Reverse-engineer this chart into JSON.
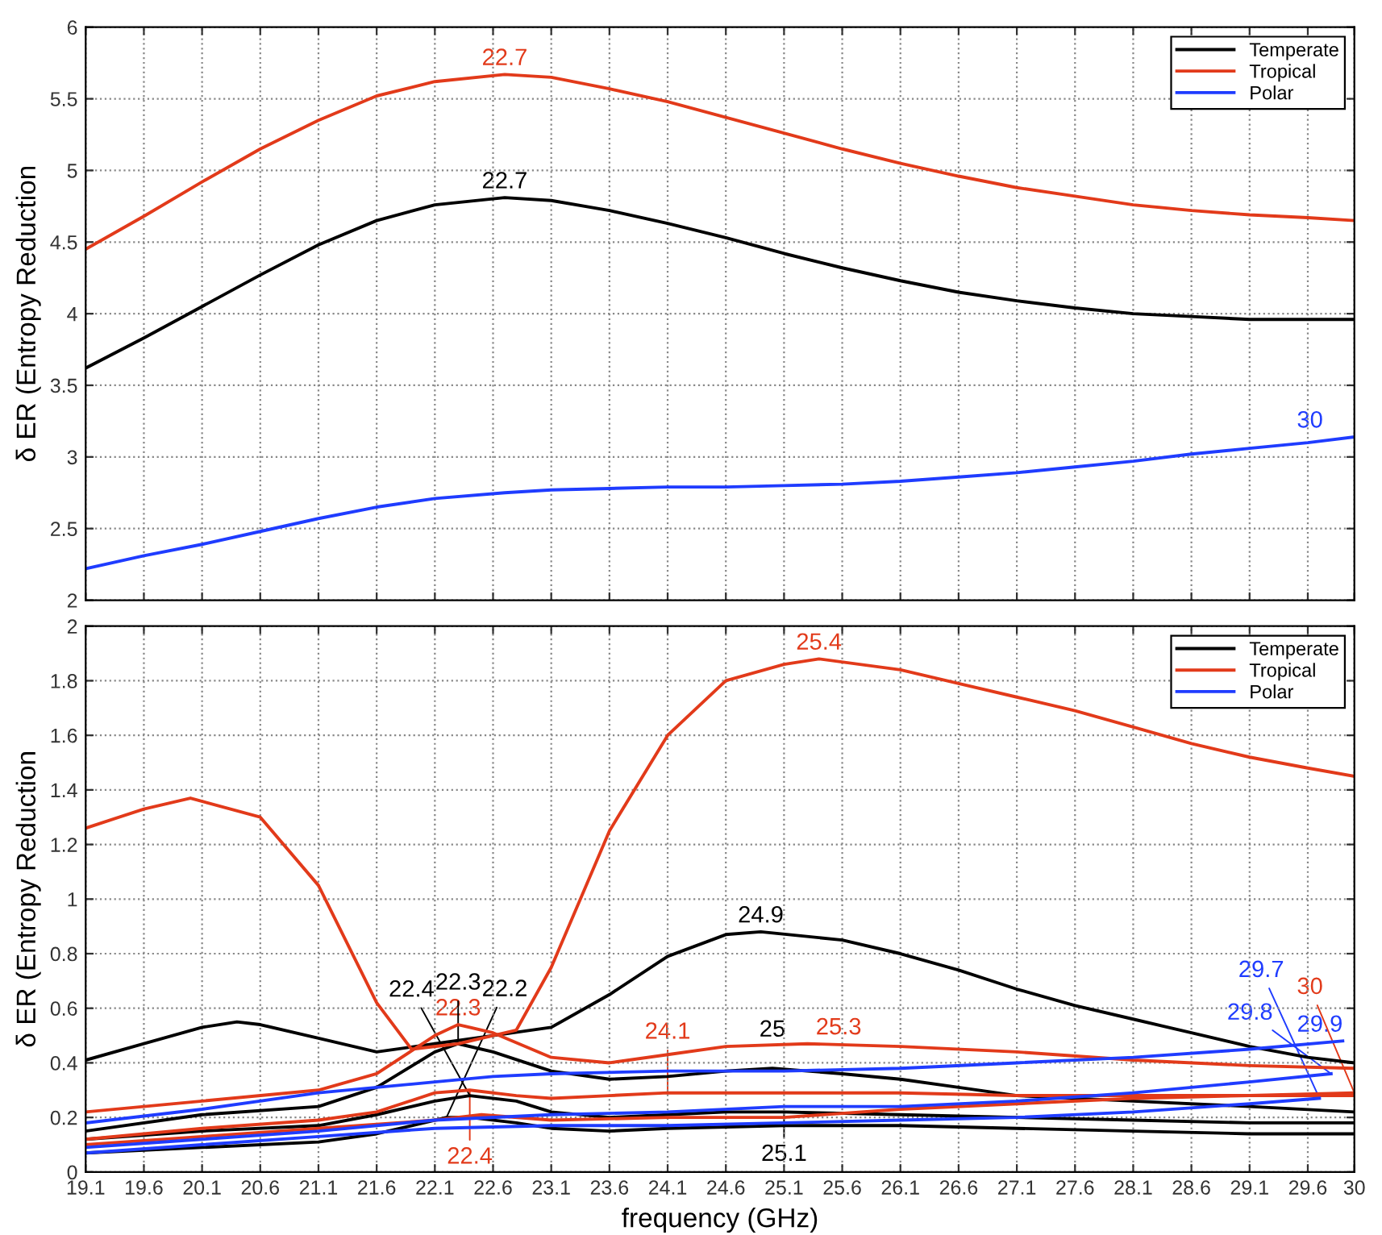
{
  "chart_data": [
    {
      "type": "line",
      "ylabel": "δ ER (Entropy Reduction",
      "xlim": [
        19.1,
        30
      ],
      "ylim": [
        2,
        6
      ],
      "xticks": [
        19.1,
        19.6,
        20.1,
        20.6,
        21.1,
        21.6,
        22.1,
        22.6,
        23.1,
        23.6,
        24.1,
        24.6,
        25.1,
        25.6,
        26.1,
        26.6,
        27.1,
        27.6,
        28.1,
        28.6,
        29.1,
        29.6,
        30
      ],
      "yticks": [
        2,
        2.5,
        3,
        3.5,
        4,
        4.5,
        5,
        5.5,
        6
      ],
      "tick_labels": "y",
      "grid": true,
      "legend": "top right",
      "x": [
        19.1,
        19.6,
        20.1,
        20.6,
        21.1,
        21.6,
        22.1,
        22.7,
        23.1,
        23.6,
        24.1,
        24.6,
        25.1,
        25.6,
        26.1,
        26.6,
        27.1,
        27.6,
        28.1,
        28.6,
        29.1,
        29.6,
        30
      ],
      "series": [
        {
          "name": "Temperate",
          "color": "#000000",
          "values": [
            3.62,
            3.83,
            4.05,
            4.27,
            4.48,
            4.65,
            4.76,
            4.81,
            4.79,
            4.72,
            4.63,
            4.53,
            4.42,
            4.32,
            4.23,
            4.15,
            4.09,
            4.04,
            4.0,
            3.98,
            3.96,
            3.96,
            3.96
          ]
        },
        {
          "name": "Tropical",
          "color": "#e23a1a",
          "values": [
            4.45,
            4.68,
            4.92,
            5.15,
            5.35,
            5.52,
            5.62,
            5.67,
            5.65,
            5.57,
            5.48,
            5.37,
            5.26,
            5.15,
            5.05,
            4.96,
            4.88,
            4.82,
            4.76,
            4.72,
            4.69,
            4.67,
            4.65
          ]
        },
        {
          "name": "Polar",
          "color": "#1f3cff",
          "values": [
            2.22,
            2.31,
            2.39,
            2.48,
            2.57,
            2.65,
            2.71,
            2.75,
            2.77,
            2.78,
            2.79,
            2.79,
            2.8,
            2.81,
            2.83,
            2.86,
            2.89,
            2.93,
            2.97,
            3.02,
            3.06,
            3.1,
            3.14
          ]
        }
      ],
      "annotations": [
        {
          "text": "22.7",
          "x": 22.7,
          "y": 5.67
        },
        {
          "text": "22.7",
          "x": 22.7,
          "y": 4.81
        },
        {
          "text": "30",
          "x": 30,
          "y": 3.14
        }
      ]
    },
    {
      "type": "line",
      "xlabel": "frequency (GHz)",
      "ylabel": "δ ER (Entropy Reduction",
      "xlim": [
        19.1,
        30
      ],
      "ylim": [
        0,
        2
      ],
      "xticks": [
        19.1,
        19.6,
        20.1,
        20.6,
        21.1,
        21.6,
        22.1,
        22.6,
        23.1,
        23.6,
        24.1,
        24.6,
        25.1,
        25.6,
        26.1,
        26.6,
        27.1,
        27.6,
        28.1,
        28.6,
        29.1,
        29.6,
        30
      ],
      "yticks": [
        0,
        0.2,
        0.4,
        0.6,
        0.8,
        1,
        1.2,
        1.4,
        1.6,
        1.8,
        2
      ],
      "grid": true,
      "legend": "top right",
      "series": [
        {
          "name": "Temperate",
          "color": "#000000",
          "x": [
            19.1,
            19.6,
            20.1,
            20.4,
            20.6,
            21.1,
            21.6,
            22.1,
            22.6,
            23.1,
            23.6,
            24.1,
            24.6,
            24.9,
            25.6,
            26.1,
            26.6,
            27.1,
            27.6,
            28.1,
            28.6,
            29.1,
            29.6,
            30
          ],
          "values": [
            0.41,
            0.47,
            0.53,
            0.55,
            0.54,
            0.49,
            0.44,
            0.47,
            0.5,
            0.53,
            0.65,
            0.79,
            0.87,
            0.88,
            0.85,
            0.8,
            0.74,
            0.67,
            0.61,
            0.56,
            0.51,
            0.46,
            0.42,
            0.4
          ]
        },
        {
          "color": "#000000",
          "x": [
            19.1,
            20.1,
            21.1,
            21.6,
            22.1,
            22.3,
            22.6,
            23.1,
            23.6,
            24.1,
            24.6,
            25,
            25.6,
            26.1,
            26.6,
            27.1,
            28.1,
            29.1,
            30
          ],
          "values": [
            0.15,
            0.21,
            0.24,
            0.31,
            0.44,
            0.47,
            0.44,
            0.37,
            0.34,
            0.35,
            0.37,
            0.38,
            0.36,
            0.34,
            0.31,
            0.28,
            0.26,
            0.24,
            0.22
          ]
        },
        {
          "color": "#000000",
          "x": [
            19.1,
            20.1,
            21.1,
            21.6,
            22.1,
            22.4,
            22.8,
            23.1,
            23.6,
            24.1,
            24.6,
            25.1,
            26.1,
            27.1,
            28.1,
            29.1,
            30
          ],
          "values": [
            0.12,
            0.15,
            0.17,
            0.21,
            0.26,
            0.28,
            0.26,
            0.22,
            0.2,
            0.21,
            0.22,
            0.22,
            0.21,
            0.2,
            0.19,
            0.18,
            0.18
          ]
        },
        {
          "color": "#000000",
          "x": [
            19.1,
            20.1,
            21.1,
            21.6,
            22.1,
            22.2,
            22.4,
            22.8,
            23.1,
            23.6,
            24.1,
            25.1,
            26.1,
            27.1,
            28.1,
            29.1,
            30
          ],
          "values": [
            0.07,
            0.09,
            0.11,
            0.14,
            0.19,
            0.2,
            0.2,
            0.18,
            0.16,
            0.15,
            0.16,
            0.17,
            0.17,
            0.16,
            0.15,
            0.14,
            0.14
          ]
        },
        {
          "name": "Tropical",
          "color": "#e23a1a",
          "x": [
            19.1,
            19.6,
            20,
            20.6,
            21.1,
            21.6,
            21.9,
            22.3,
            22.6,
            22.8,
            23.1,
            23.6,
            24.1,
            24.6,
            25.1,
            25.4,
            26.1,
            26.6,
            27.1,
            27.6,
            28.1,
            28.6,
            29.1,
            29.6,
            30
          ],
          "values": [
            1.26,
            1.33,
            1.37,
            1.3,
            1.05,
            0.62,
            0.45,
            0.47,
            0.5,
            0.52,
            0.75,
            1.25,
            1.6,
            1.8,
            1.86,
            1.88,
            1.84,
            1.79,
            1.74,
            1.69,
            1.63,
            1.57,
            1.52,
            1.48,
            1.45
          ]
        },
        {
          "color": "#e23a1a",
          "x": [
            19.1,
            20.1,
            21.1,
            21.6,
            22.1,
            22.3,
            22.6,
            23.1,
            23.6,
            24.1,
            24.6,
            25.3,
            26.1,
            27.1,
            28.1,
            29.1,
            30
          ],
          "values": [
            0.22,
            0.26,
            0.3,
            0.36,
            0.5,
            0.54,
            0.51,
            0.42,
            0.4,
            0.43,
            0.46,
            0.47,
            0.46,
            0.44,
            0.41,
            0.39,
            0.38
          ]
        },
        {
          "color": "#e23a1a",
          "x": [
            19.1,
            20.1,
            21.1,
            21.6,
            22.1,
            22.4,
            22.8,
            23.1,
            23.6,
            24.1,
            25.1,
            26.1,
            27.1,
            28.1,
            29.1,
            30
          ],
          "values": [
            0.12,
            0.16,
            0.19,
            0.22,
            0.29,
            0.3,
            0.28,
            0.27,
            0.28,
            0.29,
            0.29,
            0.29,
            0.28,
            0.28,
            0.28,
            0.28
          ]
        },
        {
          "color": "#e23a1a",
          "x": [
            19.1,
            20.1,
            21.1,
            22.1,
            22.5,
            23.1,
            24.1,
            25.1,
            26.1,
            27.1,
            28.1,
            29.1,
            30
          ],
          "values": [
            0.1,
            0.13,
            0.16,
            0.19,
            0.21,
            0.19,
            0.2,
            0.2,
            0.23,
            0.25,
            0.27,
            0.28,
            0.29
          ]
        },
        {
          "name": "Polar",
          "color": "#1f3cff",
          "x": [
            19.1,
            20.1,
            21.1,
            22.1,
            22.6,
            23.1,
            24.1,
            25.1,
            26.1,
            27.1,
            28.1,
            29.1,
            29.9
          ],
          "values": [
            0.18,
            0.23,
            0.29,
            0.33,
            0.35,
            0.36,
            0.37,
            0.37,
            0.38,
            0.4,
            0.42,
            0.45,
            0.48
          ]
        },
        {
          "color": "#1f3cff",
          "x": [
            19.1,
            20.1,
            21.1,
            22.1,
            23.1,
            24.1,
            25.1,
            26.1,
            27.1,
            28.1,
            29.1,
            29.8
          ],
          "values": [
            0.09,
            0.12,
            0.15,
            0.19,
            0.21,
            0.22,
            0.24,
            0.24,
            0.26,
            0.29,
            0.33,
            0.36
          ]
        },
        {
          "color": "#1f3cff",
          "x": [
            19.1,
            20.1,
            21.1,
            22.1,
            23.1,
            24.1,
            25.1,
            26.1,
            27.1,
            28.1,
            29.1,
            29.7
          ],
          "values": [
            0.07,
            0.1,
            0.13,
            0.16,
            0.17,
            0.17,
            0.18,
            0.19,
            0.2,
            0.22,
            0.25,
            0.27
          ]
        }
      ],
      "annotations": [
        {
          "text": "25.4",
          "x": 25.4,
          "y": 1.88
        },
        {
          "text": "24.9",
          "x": 24.9,
          "y": 0.88
        },
        {
          "text": "22.3",
          "x": 22.3,
          "y": 0.54
        },
        {
          "text": "22.3",
          "x": 22.3,
          "y": 0.47
        },
        {
          "text": "22.4",
          "x": 22.4,
          "y": 0.3
        },
        {
          "text": "22.4",
          "x": 22.4,
          "y": 0.28
        },
        {
          "text": "22.2",
          "x": 22.2,
          "y": 0.2
        },
        {
          "text": "24.1",
          "x": 24.1,
          "y": 0.29
        },
        {
          "text": "25",
          "x": 25,
          "y": 0.38
        },
        {
          "text": "25.3",
          "x": 25.3,
          "y": 0.47
        },
        {
          "text": "25.1",
          "x": 25.1,
          "y": 0.22
        },
        {
          "text": "29.9",
          "x": 29.9,
          "y": 0.48
        },
        {
          "text": "29.8",
          "x": 29.8,
          "y": 0.36
        },
        {
          "text": "30",
          "x": 30,
          "y": 0.29
        },
        {
          "text": "29.7",
          "x": 29.7,
          "y": 0.27
        }
      ]
    }
  ]
}
